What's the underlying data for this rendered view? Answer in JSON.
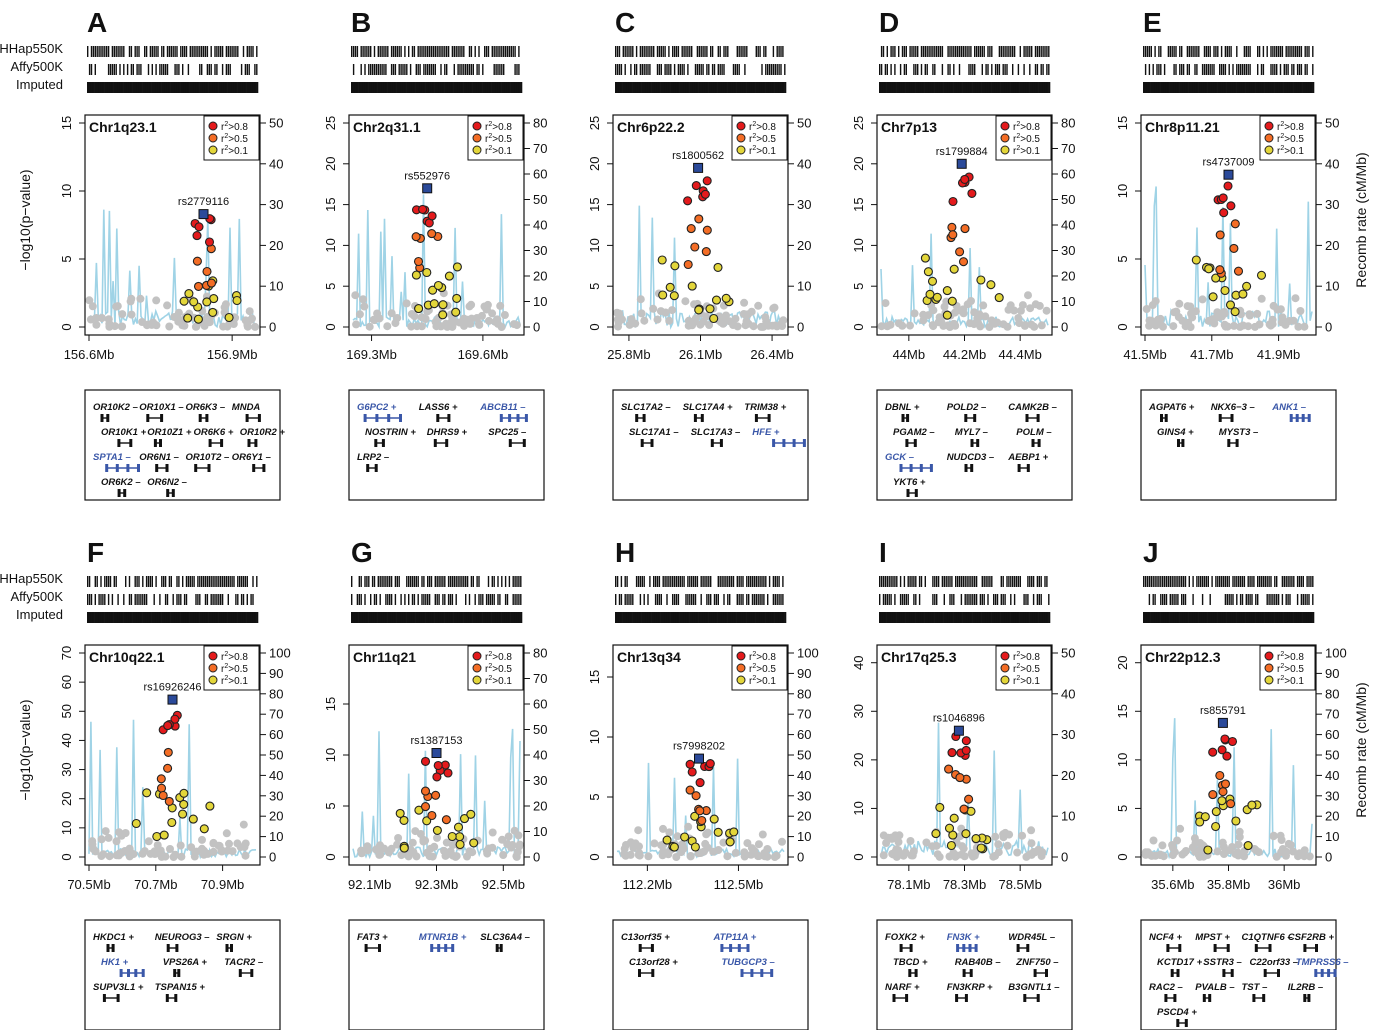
{
  "row_labels": [
    "HHap550K",
    "Affy500K",
    "Imputed"
  ],
  "y_left_label": "−log10(p−value)",
  "y_right_label": "Recomb rate (cM/Mb)",
  "legend": [
    ">0.8",
    ">0.5",
    ">0.1"
  ],
  "legend_prefix": "r",
  "legend_sup": "2",
  "colors": {
    "r08": "#e41a1c",
    "r05": "#f46d25",
    "r01": "#e3d63a",
    "lead": "#2b4a9a",
    "recomb": "#9fd3e6",
    "gene_hl": "#3a57a8",
    "gray": "#c2c2c2"
  },
  "chart_data": [
    {
      "letter": "A",
      "region": "Chr1q23.1",
      "type": "scatter",
      "snp": "rs2779116",
      "ylim": [
        0,
        15
      ],
      "yticks": [
        0,
        5,
        10,
        15
      ],
      "r2lim": [
        0,
        50
      ],
      "r2ticks": [
        0,
        10,
        20,
        30,
        40,
        50
      ],
      "xlim": [
        156.6,
        156.95
      ],
      "xticks": [
        156.6,
        156.9
      ],
      "xlabels": [
        "156.6Mb",
        "156.9Mb"
      ],
      "lead": [
        156.84,
        8.3
      ],
      "genes": [
        {
          "name": "OR10K2 –",
          "hl": false
        },
        {
          "name": "OR10X1 –",
          "hl": false
        },
        {
          "name": "OR6K3 –",
          "hl": false
        },
        {
          "name": "MNDA",
          "hl": false
        },
        {
          "name": "OR10K1 +",
          "hl": false
        },
        {
          "name": "OR10Z1 +",
          "hl": false
        },
        {
          "name": "OR6K6 +",
          "hl": false
        },
        {
          "name": "OR10R2 +",
          "hl": false
        },
        {
          "name": "SPTA1 –",
          "hl": true
        },
        {
          "name": "OR6N1 –",
          "hl": false
        },
        {
          "name": "OR10T2 –",
          "hl": false
        },
        {
          "name": "OR6Y1 –",
          "hl": false
        },
        {
          "name": "OR6K2 –",
          "hl": false
        },
        {
          "name": "OR6N2 –",
          "hl": false
        }
      ]
    },
    {
      "letter": "B",
      "region": "Chr2q31.1",
      "type": "scatter",
      "snp": "rs552976",
      "ylim": [
        0,
        25
      ],
      "yticks": [
        0,
        5,
        10,
        15,
        20,
        25
      ],
      "r2lim": [
        0,
        80
      ],
      "r2ticks": [
        0,
        10,
        20,
        30,
        40,
        50,
        60,
        70,
        80
      ],
      "xlim": [
        169.25,
        169.7
      ],
      "xticks": [
        169.3,
        169.6
      ],
      "xlabels": [
        "169.3Mb",
        "169.6Mb"
      ],
      "lead": [
        169.45,
        17
      ],
      "genes": [
        {
          "name": "G6PC2 +",
          "hl": true
        },
        {
          "name": "LASS6 +",
          "hl": false
        },
        {
          "name": "ABCB11 –",
          "hl": true
        },
        {
          "name": "NOSTRIN +",
          "hl": false
        },
        {
          "name": "DHRS9 +",
          "hl": false
        },
        {
          "name": "SPC25 –",
          "hl": false
        },
        {
          "name": "LRP2 –",
          "hl": false
        }
      ]
    },
    {
      "letter": "C",
      "region": "Chr6p22.2",
      "type": "scatter",
      "snp": "rs1800562",
      "ylim": [
        0,
        25
      ],
      "yticks": [
        0,
        5,
        10,
        15,
        20,
        25
      ],
      "r2lim": [
        0,
        50
      ],
      "r2ticks": [
        0,
        10,
        20,
        30,
        40,
        50
      ],
      "xlim": [
        25.75,
        26.45
      ],
      "xticks": [
        25.8,
        26.1,
        26.4
      ],
      "xlabels": [
        "25.8Mb",
        "26.1Mb",
        "26.4Mb"
      ],
      "lead": [
        26.09,
        19.5
      ],
      "genes": [
        {
          "name": "SLC17A2 –",
          "hl": false
        },
        {
          "name": "SLC17A4 +",
          "hl": false
        },
        {
          "name": "TRIM38 +",
          "hl": false
        },
        {
          "name": "SLC17A1 –",
          "hl": false
        },
        {
          "name": "SLC17A3 –",
          "hl": false
        },
        {
          "name": "HFE +",
          "hl": true
        }
      ]
    },
    {
      "letter": "D",
      "region": "Chr7p13",
      "type": "scatter",
      "snp": "rs1799884",
      "ylim": [
        0,
        25
      ],
      "yticks": [
        0,
        5,
        10,
        15,
        20,
        25
      ],
      "r2lim": [
        0,
        80
      ],
      "r2ticks": [
        0,
        10,
        20,
        30,
        40,
        50,
        60,
        70,
        80
      ],
      "xlim": [
        43.9,
        44.5
      ],
      "xticks": [
        44.0,
        44.2,
        44.4
      ],
      "xlabels": [
        "44Mb",
        "44.2Mb",
        "44.4Mb"
      ],
      "lead": [
        44.19,
        20
      ],
      "genes": [
        {
          "name": "DBNL +",
          "hl": false
        },
        {
          "name": "POLD2 –",
          "hl": false
        },
        {
          "name": "CAMK2B –",
          "hl": false
        },
        {
          "name": "PGAM2 –",
          "hl": false
        },
        {
          "name": "MYL7 –",
          "hl": false
        },
        {
          "name": "POLM –",
          "hl": false
        },
        {
          "name": "GCK –",
          "hl": true
        },
        {
          "name": "NUDCD3 –",
          "hl": false
        },
        {
          "name": "AEBP1 +",
          "hl": false
        },
        {
          "name": "YKT6 +",
          "hl": false
        }
      ]
    },
    {
      "letter": "E",
      "region": "Chr8p11.21",
      "type": "scatter",
      "snp": "rs4737009",
      "ylim": [
        0,
        15
      ],
      "yticks": [
        0,
        5,
        10,
        15
      ],
      "r2lim": [
        0,
        50
      ],
      "r2ticks": [
        0,
        10,
        20,
        30,
        40,
        50
      ],
      "xlim": [
        41.5,
        42.0
      ],
      "xticks": [
        41.5,
        41.7,
        41.9
      ],
      "xlabels": [
        "41.5Mb",
        "41.7Mb",
        "41.9Mb"
      ],
      "lead": [
        41.75,
        11.2
      ],
      "genes": [
        {
          "name": "AGPAT6 +",
          "hl": false
        },
        {
          "name": "NKX6−3 –",
          "hl": false
        },
        {
          "name": "ANK1 –",
          "hl": true
        },
        {
          "name": "GINS4 +",
          "hl": false
        },
        {
          "name": "MYST3 –",
          "hl": false
        }
      ]
    },
    {
      "letter": "F",
      "region": "Chr10q22.1",
      "type": "scatter",
      "snp": "rs16926246",
      "ylim": [
        0,
        70
      ],
      "yticks": [
        0,
        10,
        20,
        30,
        40,
        50,
        60,
        70
      ],
      "r2lim": [
        0,
        100
      ],
      "r2ticks": [
        0,
        10,
        20,
        30,
        40,
        50,
        60,
        70,
        80,
        90,
        100
      ],
      "xlim": [
        70.5,
        71.0
      ],
      "xticks": [
        70.5,
        70.7,
        70.9
      ],
      "xlabels": [
        "70.5Mb",
        "70.7Mb",
        "70.9Mb"
      ],
      "lead": [
        70.75,
        54
      ],
      "genes": [
        {
          "name": "HKDC1 +",
          "hl": false
        },
        {
          "name": "NEUROG3 –",
          "hl": false
        },
        {
          "name": "SRGN +",
          "hl": false
        },
        {
          "name": "HK1 +",
          "hl": true
        },
        {
          "name": "VPS26A +",
          "hl": false
        },
        {
          "name": "TACR2 –",
          "hl": false
        },
        {
          "name": "SUPV3L1 +",
          "hl": false
        },
        {
          "name": "TSPAN15 +",
          "hl": false
        }
      ]
    },
    {
      "letter": "G",
      "region": "Chr11q21",
      "type": "scatter",
      "snp": "rs1387153",
      "ylim": [
        0,
        20
      ],
      "yticks": [
        0,
        5,
        10,
        15
      ],
      "r2lim": [
        0,
        80
      ],
      "r2ticks": [
        0,
        10,
        20,
        30,
        40,
        50,
        60,
        70,
        80
      ],
      "xlim": [
        92.05,
        92.55
      ],
      "xticks": [
        92.1,
        92.3,
        92.5
      ],
      "xlabels": [
        "92.1Mb",
        "92.3Mb",
        "92.5Mb"
      ],
      "lead": [
        92.3,
        10.2
      ],
      "genes": [
        {
          "name": "FAT3 +",
          "hl": false
        },
        {
          "name": "MTNR1B +",
          "hl": true
        },
        {
          "name": "SLC36A4 –",
          "hl": false
        }
      ]
    },
    {
      "letter": "H",
      "region": "Chr13q34",
      "type": "scatter",
      "snp": "rs7998202",
      "ylim": [
        0,
        17
      ],
      "yticks": [
        0,
        5,
        10,
        15
      ],
      "r2lim": [
        0,
        100
      ],
      "r2ticks": [
        0,
        10,
        20,
        30,
        40,
        50,
        60,
        70,
        80,
        90,
        100
      ],
      "xlim": [
        112.1,
        112.65
      ],
      "xticks": [
        112.2,
        112.5
      ],
      "xlabels": [
        "112.2Mb",
        "112.5Mb"
      ],
      "lead": [
        112.37,
        8.2
      ],
      "genes": [
        {
          "name": "C13orf35 +",
          "hl": false
        },
        {
          "name": "ATP11A +",
          "hl": true
        },
        {
          "name": "C13orf28 +",
          "hl": false
        },
        {
          "name": "TUBGCP3 –",
          "hl": true
        }
      ]
    },
    {
      "letter": "I",
      "region": "Chr17q25.3",
      "type": "scatter",
      "snp": "rs1046896",
      "ylim": [
        0,
        42
      ],
      "yticks": [
        0,
        10,
        20,
        30,
        40
      ],
      "r2lim": [
        0,
        50
      ],
      "r2ticks": [
        0,
        10,
        20,
        30,
        40,
        50
      ],
      "xlim": [
        78.0,
        78.6
      ],
      "xticks": [
        78.1,
        78.3,
        78.5
      ],
      "xlabels": [
        "78.1Mb",
        "78.3Mb",
        "78.5Mb"
      ],
      "lead": [
        78.28,
        26
      ],
      "genes": [
        {
          "name": "FOXK2 +",
          "hl": false
        },
        {
          "name": "FN3K +",
          "hl": true
        },
        {
          "name": "WDR45L –",
          "hl": false
        },
        {
          "name": "TBCD +",
          "hl": false
        },
        {
          "name": "RAB40B –",
          "hl": false
        },
        {
          "name": "ZNF750 –",
          "hl": false
        },
        {
          "name": "NARF +",
          "hl": false
        },
        {
          "name": "FN3KRP +",
          "hl": false
        },
        {
          "name": "B3GNTL1 –",
          "hl": false
        }
      ]
    },
    {
      "letter": "J",
      "region": "Chr22p12.3",
      "type": "scatter",
      "snp": "rs855791",
      "ylim": [
        0,
        21
      ],
      "yticks": [
        0,
        5,
        10,
        15,
        20
      ],
      "r2lim": [
        0,
        100
      ],
      "r2ticks": [
        0,
        10,
        20,
        30,
        40,
        50,
        60,
        70,
        80,
        90,
        100
      ],
      "xlim": [
        35.5,
        36.1
      ],
      "xticks": [
        35.6,
        35.8,
        36.0
      ],
      "xlabels": [
        "35.6Mb",
        "35.8Mb",
        "36Mb"
      ],
      "lead": [
        35.78,
        13.8
      ],
      "genes": [
        {
          "name": "NCF4 +",
          "hl": false
        },
        {
          "name": "MPST +",
          "hl": false
        },
        {
          "name": "C1QTNF6 –",
          "hl": false
        },
        {
          "name": "CSF2RB +",
          "hl": false
        },
        {
          "name": "KCTD17 +",
          "hl": false
        },
        {
          "name": "SSTR3 –",
          "hl": false
        },
        {
          "name": "C22orf33 –",
          "hl": false
        },
        {
          "name": "TMPRSS6 –",
          "hl": true
        },
        {
          "name": "RAC2 –",
          "hl": false
        },
        {
          "name": "PVALB –",
          "hl": false
        },
        {
          "name": "TST –",
          "hl": false
        },
        {
          "name": "IL2RB –",
          "hl": false
        },
        {
          "name": "PSCD4 +",
          "hl": false
        }
      ]
    }
  ]
}
